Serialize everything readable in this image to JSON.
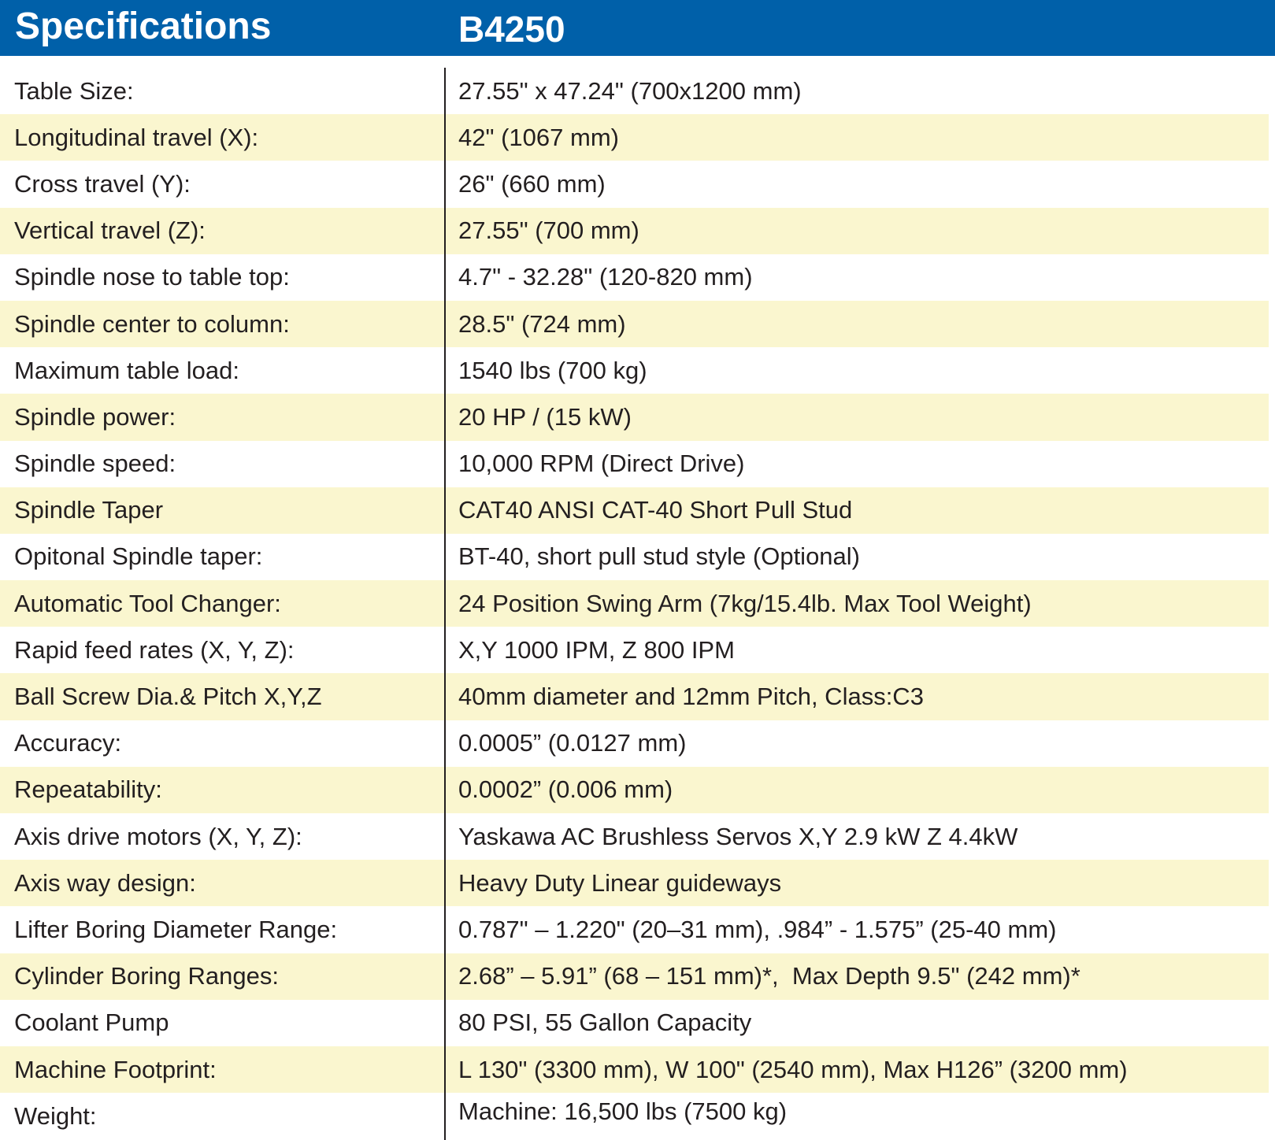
{
  "header": {
    "title": "Specifications",
    "model": "B4250"
  },
  "colors": {
    "header_bg": "#0060a9",
    "stripe": "#faf6cf",
    "text": "#231f20"
  },
  "specs": [
    {
      "label": "Table Size:",
      "value": "27.55\" x 47.24\" (700x1200 mm)"
    },
    {
      "label": "Longitudinal travel (X):",
      "value": "42\" (1067 mm)"
    },
    {
      "label": "Cross travel (Y):",
      "value": "26\" (660 mm)"
    },
    {
      "label": "Vertical travel (Z):",
      "value": "27.55\" (700 mm)"
    },
    {
      "label": "Spindle nose to table top:",
      "value": "4.7\" - 32.28\" (120-820 mm)"
    },
    {
      "label": "Spindle center to column:",
      "value": "28.5\" (724 mm)"
    },
    {
      "label": "Maximum table load:",
      "value": "1540 lbs (700 kg)"
    },
    {
      "label": "Spindle power:",
      "value": "20 HP / (15 kW)"
    },
    {
      "label": "Spindle speed:",
      "value": "10,000 RPM (Direct Drive)"
    },
    {
      "label": "Spindle Taper",
      "value": "CAT40 ANSI CAT-40 Short Pull Stud"
    },
    {
      "label": "Opitonal Spindle taper:",
      "value": "BT-40, short pull stud style (Optional)"
    },
    {
      "label": "Automatic Tool Changer:",
      "value": "24 Position Swing Arm (7kg/15.4lb. Max Tool Weight)"
    },
    {
      "label": "Rapid feed rates (X, Y, Z):",
      "value": "X,Y 1000 IPM, Z 800 IPM"
    },
    {
      "label": "Ball Screw Dia.& Pitch X,Y,Z",
      "value": "40mm diameter and 12mm Pitch, Class:C3"
    },
    {
      "label": "Accuracy:",
      "value": "0.0005” (0.0127 mm)"
    },
    {
      "label": "Repeatability:",
      "value": "0.0002” (0.006 mm)"
    },
    {
      "label": "Axis drive motors (X, Y, Z):",
      "value": "Yaskawa AC Brushless Servos X,Y 2.9 kW Z 4.4kW"
    },
    {
      "label": "Axis way design:",
      "value": "Heavy Duty Linear guideways"
    },
    {
      "label": "Lifter Boring Diameter Range:",
      "value": "0.787\" – 1.220\" (20–31 mm), .984” - 1.575” (25-40 mm)"
    },
    {
      "label": "Cylinder Boring Ranges:",
      "value": "2.68” – 5.91” (68 – 151 mm)*,  Max Depth 9.5\" (242 mm)*"
    },
    {
      "label": "Coolant Pump",
      "value": "80 PSI, 55 Gallon Capacity"
    },
    {
      "label": "Machine Footprint:",
      "value": "L 130\" (3300 mm), W 100\" (2540 mm), Max H126” (3200 mm)"
    },
    {
      "label": "Weight:",
      "value": "Machine: 16,500 lbs (7500 kg)"
    }
  ]
}
